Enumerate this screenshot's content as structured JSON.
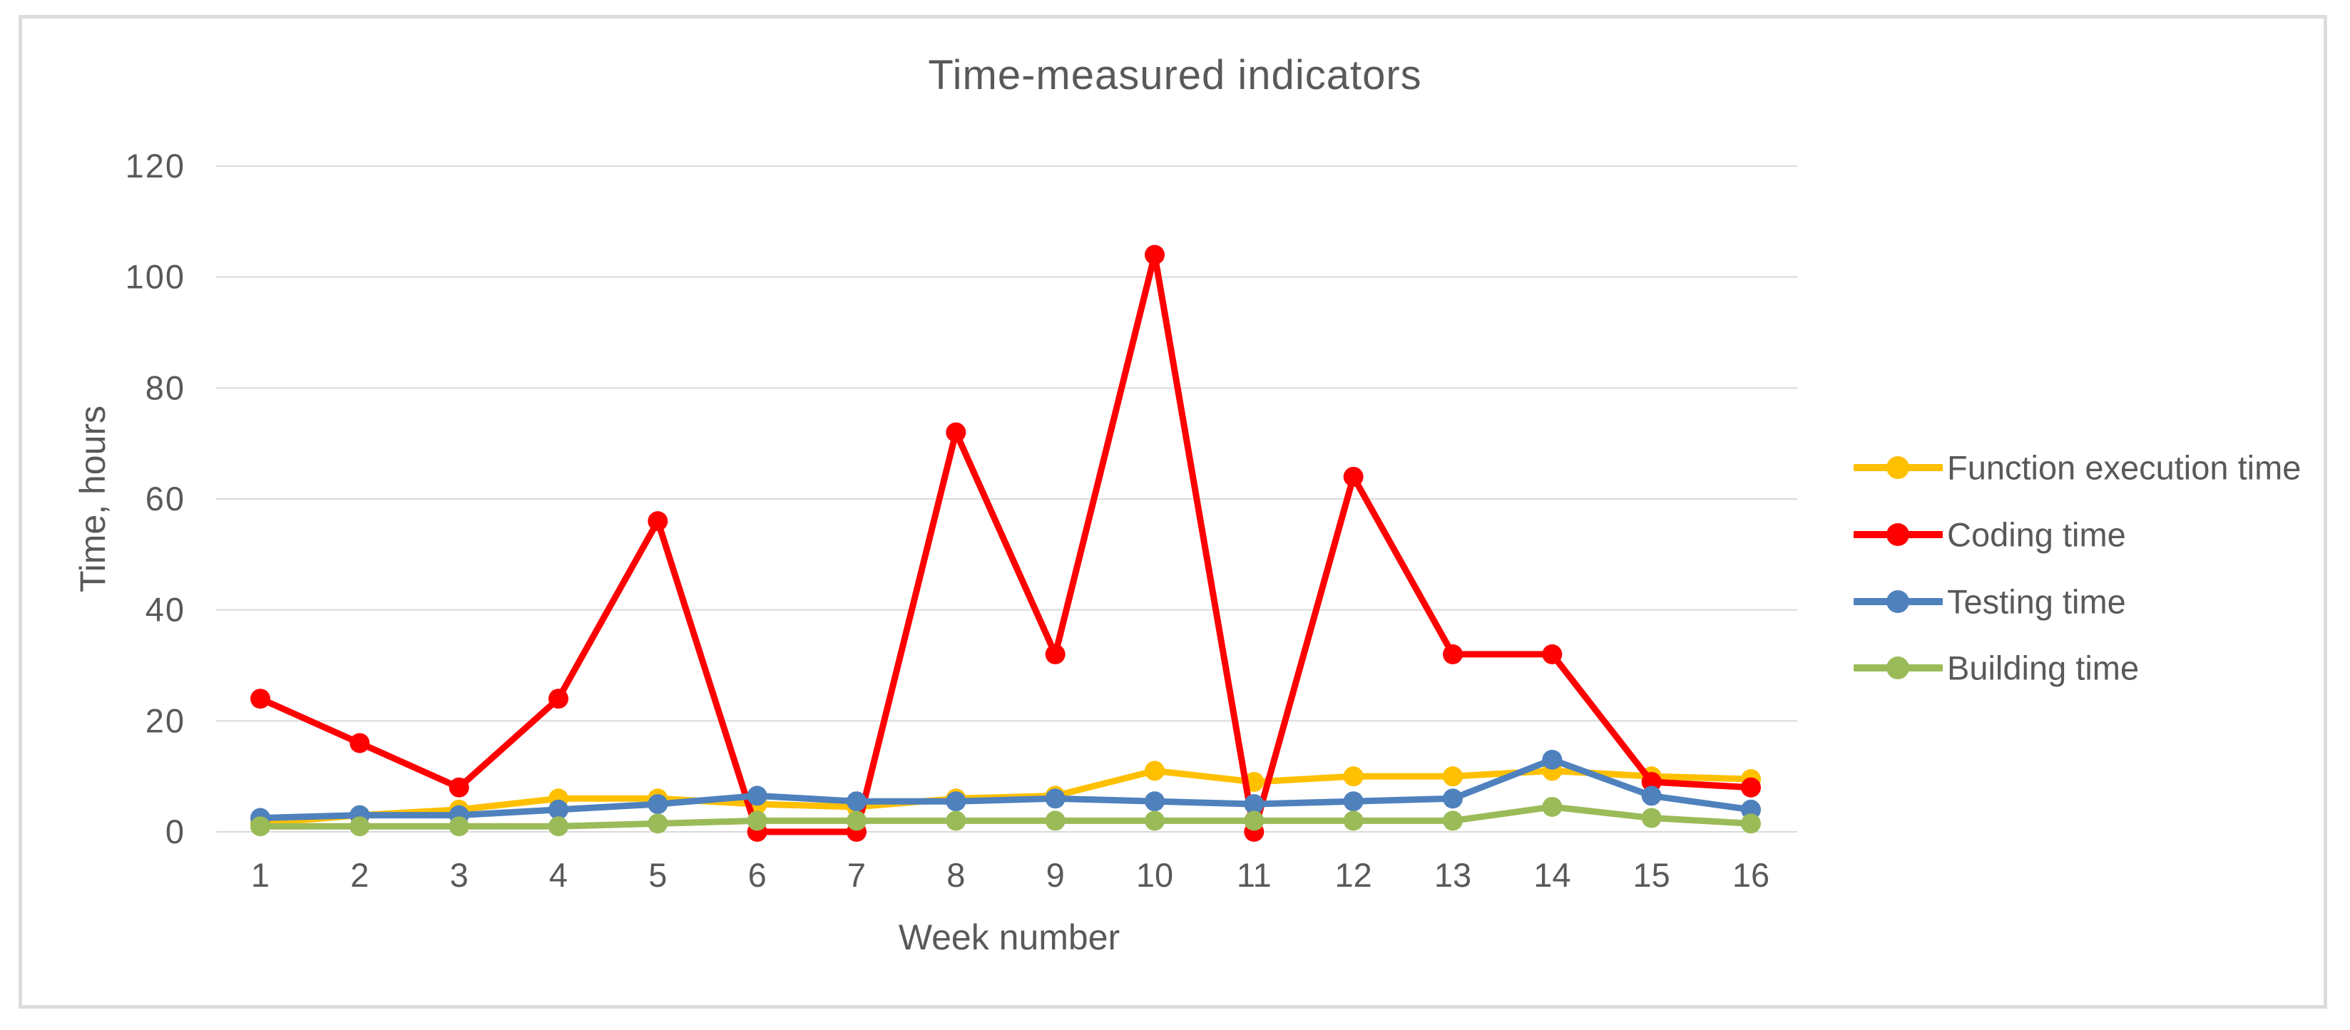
{
  "chart_data": {
    "type": "line",
    "title": "Time-measured indicators",
    "xlabel": "Week number",
    "ylabel": "Time, hours",
    "categories": [
      "1",
      "2",
      "3",
      "4",
      "5",
      "6",
      "7",
      "8",
      "9",
      "10",
      "11",
      "12",
      "13",
      "14",
      "15",
      "16"
    ],
    "y_ticks": [
      0,
      20,
      40,
      60,
      80,
      100,
      120
    ],
    "ylim": [
      0,
      120
    ],
    "grid": true,
    "legend_position": "right",
    "series": [
      {
        "name": "Function execution time",
        "color": "#FFC000",
        "values": [
          1.5,
          3,
          4,
          6,
          6,
          5,
          4.5,
          6,
          6.5,
          11,
          9,
          10,
          10,
          11,
          10,
          9.5
        ]
      },
      {
        "name": "Coding time",
        "color": "#FF0000",
        "values": [
          24,
          16,
          8,
          24,
          56,
          0,
          0,
          72,
          32,
          104,
          0,
          64,
          32,
          32,
          9,
          8
        ]
      },
      {
        "name": "Testing time",
        "color": "#4F81BD",
        "values": [
          2.5,
          3,
          3,
          4,
          5,
          6.5,
          5.5,
          5.5,
          6,
          5.5,
          5,
          5.5,
          6,
          13,
          6.5,
          4
        ]
      },
      {
        "name": "Building time",
        "color": "#9BBB59",
        "values": [
          1,
          1,
          1,
          1,
          1.5,
          2,
          2,
          2,
          2,
          2,
          2,
          2,
          2,
          4.5,
          2.5,
          1.5
        ]
      }
    ],
    "colors": {
      "text": "#595959",
      "gridline": "#D9D9D9",
      "frame_border": "#DCDCDC",
      "background": "#FFFFFF"
    }
  }
}
